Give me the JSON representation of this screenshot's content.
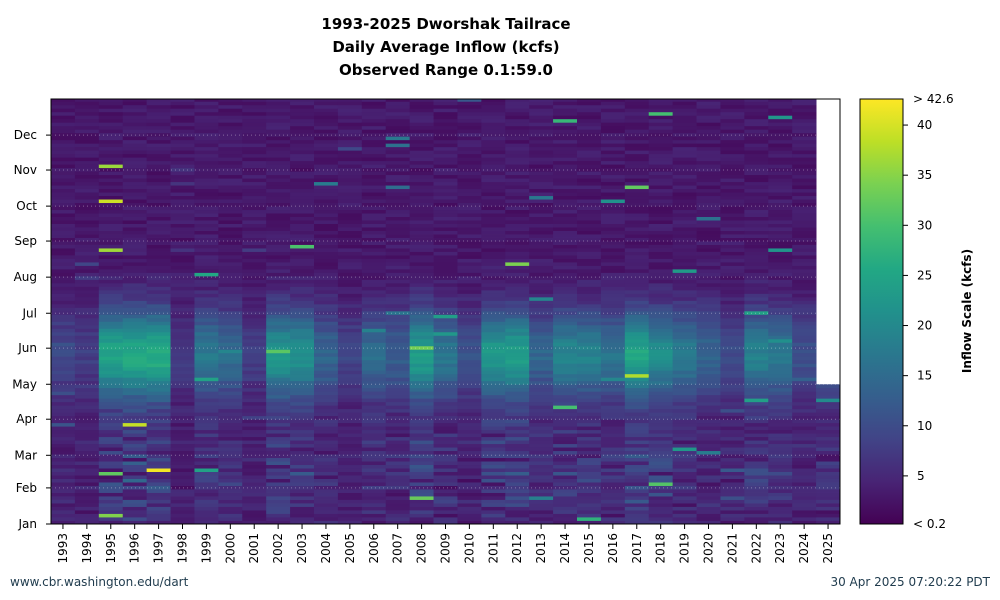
{
  "chart_data": {
    "type": "heatmap",
    "title_lines": [
      "1993-2025 Dworshak Tailrace",
      "Daily Average Inflow (kcfs)",
      "Observed Range 0.1:59.0"
    ],
    "x_categories": [
      "1993",
      "1994",
      "1995",
      "1996",
      "1997",
      "1998",
      "1999",
      "2000",
      "2001",
      "2002",
      "2003",
      "2004",
      "2005",
      "2006",
      "2007",
      "2008",
      "2009",
      "2010",
      "2011",
      "2012",
      "2013",
      "2014",
      "2015",
      "2016",
      "2017",
      "2018",
      "2019",
      "2020",
      "2021",
      "2022",
      "2023",
      "2024",
      "2025"
    ],
    "y_tick_labels": [
      "Jan",
      "Feb",
      "Mar",
      "Apr",
      "May",
      "Jun",
      "Jul",
      "Aug",
      "Sep",
      "Oct",
      "Nov",
      "Dec"
    ],
    "y_tick_days": [
      1,
      32,
      60,
      91,
      121,
      152,
      182,
      213,
      244,
      274,
      305,
      335
    ],
    "y_range_days": [
      1,
      366
    ],
    "colorbar": {
      "label": "Inflow Scale (kcfs)",
      "min": 0.2,
      "max": 42.6,
      "min_label": "< 0.2",
      "max_label": "> 42.6",
      "ticks": [
        5,
        10,
        15,
        20,
        25,
        30,
        35,
        40
      ],
      "tick_labels": [
        "5",
        "10",
        "15",
        "20",
        "25",
        "30",
        "35",
        "40"
      ],
      "colormap": "viridis"
    },
    "data_end": {
      "year": "2025",
      "last_day": 120
    },
    "peak_flows_kcfs": {
      "1993": 12,
      "1994": 9,
      "1995": 40,
      "1996": 42,
      "1997": 42.6,
      "1998": 8,
      "1999": 26,
      "2000": 22,
      "2001": 9,
      "2002": 35,
      "2003": 34,
      "2004": 20,
      "2005": 11,
      "2006": 22,
      "2007": 18,
      "2008": 38,
      "2009": 25,
      "2010": 14,
      "2011": 36,
      "2012": 38,
      "2013": 20,
      "2014": 30,
      "2015": 28,
      "2016": 24,
      "2017": 40,
      "2018": 32,
      "2019": 26,
      "2020": 20,
      "2021": 12,
      "2022": 28,
      "2023": 26,
      "2024": 14,
      "2025": 22
    },
    "grid": true
  },
  "footer": {
    "left": "www.cbr.washington.edu/dart",
    "right": "30 Apr 2025 07:20:22 PDT"
  }
}
